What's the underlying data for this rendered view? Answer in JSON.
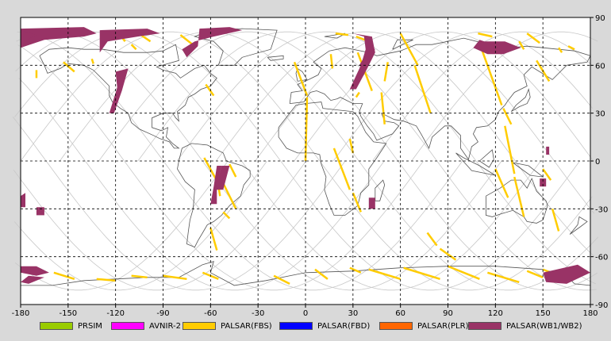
{
  "map": {
    "x_ticks": [
      "-180",
      "-150",
      "-120",
      "-90",
      "-60",
      "-30",
      "0",
      "30",
      "60",
      "90",
      "120",
      "150",
      "180"
    ],
    "y_ticks": [
      "90",
      "60",
      "30",
      "0",
      "-30",
      "-60",
      "-90"
    ],
    "x_range": [
      -180,
      180
    ],
    "y_range": [
      -90,
      90
    ]
  },
  "legend": {
    "items": [
      {
        "label": "PRSIM",
        "color": "#99cc00"
      },
      {
        "label": "AVNIR-2",
        "color": "#ff00ff"
      },
      {
        "label": "PALSAR(FBS)",
        "color": "#ffcc00"
      },
      {
        "label": "PALSAR(FBD)",
        "color": "#0000ff"
      },
      {
        "label": "PALSAR(PLR)",
        "color": "#ff6600"
      },
      {
        "label": "PALSAR(WB1/WB2)",
        "color": "#993366"
      }
    ]
  },
  "colors": {
    "fbs": "#ffcc00",
    "wb": "#993366",
    "orbit": "#c8c8c8",
    "coast": "#555555",
    "plot_bg": "#ffffff",
    "page_bg": "#d9d9d9"
  }
}
